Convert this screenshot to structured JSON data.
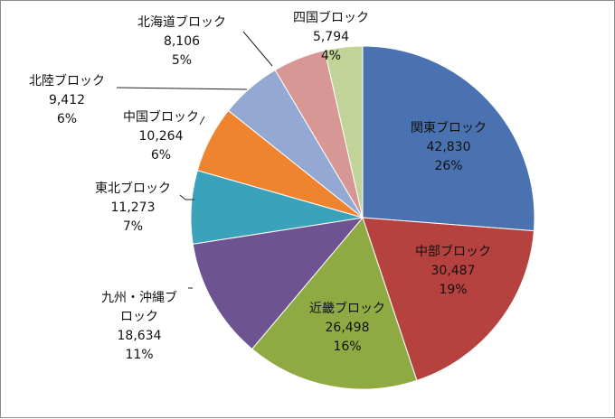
{
  "chart_data": {
    "type": "pie",
    "start_angle_deg": 0,
    "direction": "clockwise",
    "slices": [
      {
        "name": "関東ブロック",
        "value": "42,830",
        "percent": "26%",
        "numeric": 42830,
        "color": "#4A72B0",
        "label_position": "inside"
      },
      {
        "name": "中部ブロック",
        "value": "30,487",
        "percent": "19%",
        "numeric": 30487,
        "color": "#B5423E",
        "label_position": "inside"
      },
      {
        "name": "近畿ブロック",
        "value": "26,498",
        "percent": "16%",
        "numeric": 26498,
        "color": "#8FAA43",
        "label_position": "inside"
      },
      {
        "name": "九州・沖縄ブロック",
        "value": "18,634",
        "percent": "11%",
        "numeric": 18634,
        "color": "#6E5393",
        "label_position": "outside",
        "label_lines": [
          "九州・沖縄ブ",
          "ロック"
        ]
      },
      {
        "name": "東北ブロック",
        "value": "11,273",
        "percent": "7%",
        "numeric": 11273,
        "color": "#3AA2BA",
        "label_position": "outside"
      },
      {
        "name": "中国ブロック",
        "value": "10,264",
        "percent": "6%",
        "numeric": 10264,
        "color": "#EE8430",
        "label_position": "outside"
      },
      {
        "name": "北陸ブロック",
        "value": "9,412",
        "percent": "6%",
        "numeric": 9412,
        "color": "#93A9D4",
        "label_position": "outside"
      },
      {
        "name": "北海道ブロック",
        "value": "8,106",
        "percent": "5%",
        "numeric": 8106,
        "color": "#D79794",
        "label_position": "outside"
      },
      {
        "name": "四国ブロック",
        "value": "5,794",
        "percent": "4%",
        "numeric": 5794,
        "color": "#C1D397",
        "label_position": "outside"
      }
    ]
  }
}
